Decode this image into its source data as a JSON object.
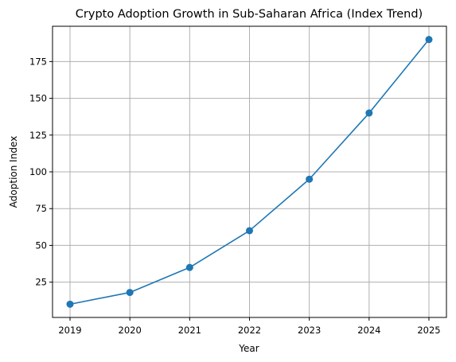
{
  "chart_data": {
    "type": "line",
    "title": "Crypto Adoption Growth in Sub-Saharan Africa (Index Trend)",
    "xlabel": "Year",
    "ylabel": "Adoption Index",
    "x": [
      "2019",
      "2020",
      "2021",
      "2022",
      "2023",
      "2024",
      "2025"
    ],
    "series": [
      {
        "values": [
          10,
          18,
          35,
          60,
          95,
          140,
          190
        ],
        "color": "#1f77b4",
        "marker": "circle"
      }
    ],
    "yticks": [
      25,
      50,
      75,
      100,
      125,
      150,
      175
    ],
    "ylim": [
      1,
      199
    ],
    "grid": true,
    "legend": "none"
  }
}
